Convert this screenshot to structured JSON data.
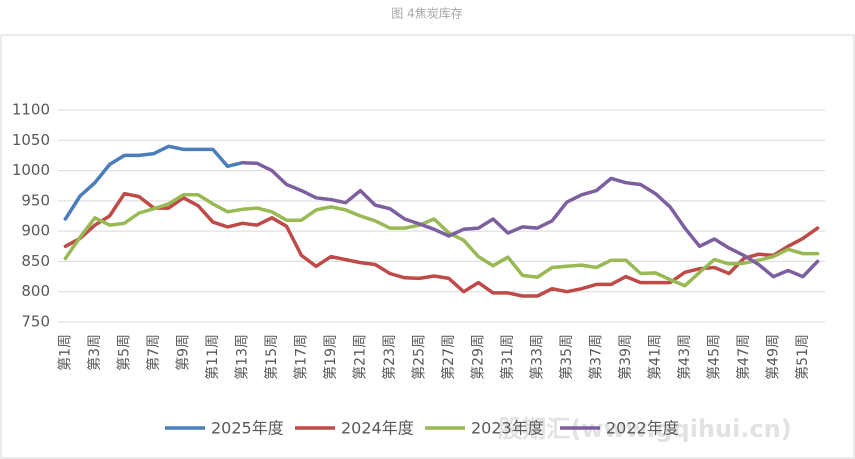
{
  "chart_data": {
    "type": "line",
    "title": "图 4焦炭库存",
    "watermark": "股期汇(www.gqihui.cn)",
    "categories": [
      "第1周",
      null,
      "第3周",
      null,
      "第5周",
      null,
      "第7周",
      null,
      "第9周",
      null,
      "第11周",
      null,
      "第13周",
      null,
      "第15周",
      null,
      "第17周",
      null,
      "第19周",
      null,
      "第21周",
      null,
      "第23周",
      null,
      "第25周",
      null,
      "第27周",
      null,
      "第29周",
      null,
      "第31周",
      null,
      "第33周",
      null,
      "第35周",
      null,
      "第37周",
      null,
      "第39周",
      null,
      "第41周",
      null,
      "第43周",
      null,
      "第45周",
      null,
      "第47周",
      null,
      "第49周",
      null,
      "第51周",
      null
    ],
    "ylim": [
      750,
      1100
    ],
    "yticks": [
      750,
      800,
      850,
      900,
      950,
      1000,
      1050,
      1100
    ],
    "grid": true,
    "legend": "bottom",
    "series": [
      {
        "name": "2025年度",
        "color": "#4a7ebb",
        "values": [
          920,
          958,
          980,
          1010,
          1025,
          1025,
          1028,
          1040,
          1035,
          1035,
          1035,
          1007,
          1013,
          null,
          null,
          null,
          null,
          null,
          null,
          null,
          null,
          null,
          null,
          null,
          null,
          null,
          null,
          null,
          null,
          null,
          null,
          null,
          null,
          null,
          null,
          null,
          null,
          null,
          null,
          null,
          null,
          null,
          null,
          null,
          null,
          null,
          null,
          null,
          null,
          null,
          null,
          null
        ]
      },
      {
        "name": "2024年度",
        "color": "#be4b48",
        "values": [
          875,
          888,
          910,
          925,
          962,
          957,
          938,
          938,
          955,
          942,
          915,
          907,
          913,
          910,
          922,
          908,
          860,
          842,
          858,
          853,
          848,
          845,
          830,
          823,
          822,
          826,
          822,
          800,
          815,
          798,
          798,
          793,
          793,
          805,
          800,
          805,
          812,
          812,
          825,
          815,
          815,
          815,
          832,
          838,
          840,
          830,
          855,
          862,
          860,
          875,
          888,
          905
        ]
      },
      {
        "name": "2023年度",
        "color": "#98b954",
        "values": [
          855,
          890,
          922,
          910,
          913,
          930,
          937,
          945,
          960,
          960,
          945,
          932,
          936,
          938,
          932,
          918,
          918,
          935,
          940,
          935,
          925,
          917,
          905,
          905,
          910,
          920,
          897,
          885,
          858,
          843,
          857,
          827,
          824,
          840,
          842,
          844,
          840,
          852,
          852,
          830,
          831,
          820,
          810,
          832,
          853,
          846,
          847,
          852,
          858,
          870,
          863,
          863
        ]
      },
      {
        "name": "2022年度",
        "color": "#7d5fa0",
        "values": [
          null,
          null,
          null,
          null,
          null,
          null,
          null,
          null,
          null,
          null,
          null,
          null,
          1013,
          1012,
          1000,
          977,
          967,
          955,
          952,
          947,
          967,
          943,
          937,
          920,
          912,
          903,
          892,
          903,
          905,
          920,
          897,
          907,
          905,
          917,
          948,
          960,
          967,
          987,
          980,
          977,
          962,
          940,
          905,
          875,
          887,
          872,
          860,
          845,
          825,
          835,
          825,
          850
        ]
      }
    ]
  }
}
